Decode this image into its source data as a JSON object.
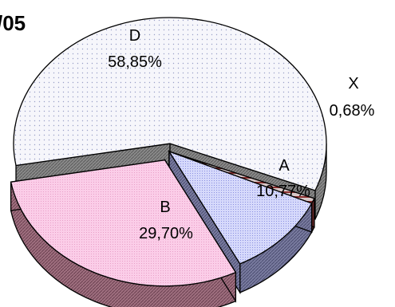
{
  "chart_data": {
    "type": "pie",
    "title": "/05",
    "categories": [
      "D",
      "X",
      "A",
      "B"
    ],
    "values": [
      58.85,
      0.68,
      10.77,
      29.7
    ],
    "value_labels": [
      "58,85%",
      "0,68%",
      "10,77%",
      "29,70%"
    ],
    "units": "%",
    "three_d": true,
    "exploded": true,
    "legend": "none",
    "colors": {
      "D": "#f6f6fb",
      "X": "#b05a5a",
      "A": "#d0d4fa",
      "B": "#fbcde8"
    }
  }
}
